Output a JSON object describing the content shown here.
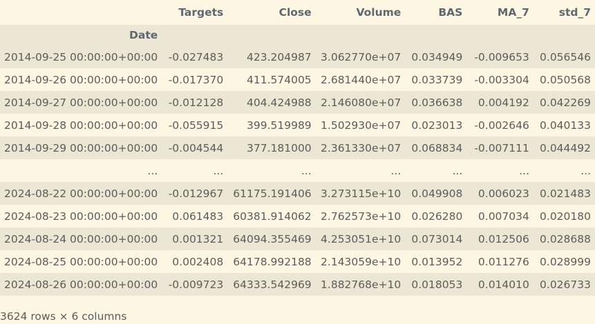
{
  "table": {
    "columns": [
      "Targets",
      "Close",
      "Volume",
      "BAS",
      "MA_7",
      "std_7"
    ],
    "index_name": "Date",
    "rows": [
      [
        "2014-09-25 00:00:00+00:00",
        "-0.027483",
        "423.204987",
        "3.062770e+07",
        "0.034949",
        "-0.009653",
        "0.056546"
      ],
      [
        "2014-09-26 00:00:00+00:00",
        "-0.017370",
        "411.574005",
        "2.681440e+07",
        "0.033739",
        "-0.003304",
        "0.050568"
      ],
      [
        "2014-09-27 00:00:00+00:00",
        "-0.012128",
        "404.424988",
        "2.146080e+07",
        "0.036638",
        "0.004192",
        "0.042269"
      ],
      [
        "2014-09-28 00:00:00+00:00",
        "-0.055915",
        "399.519989",
        "1.502930e+07",
        "0.023013",
        "-0.002646",
        "0.040133"
      ],
      [
        "2014-09-29 00:00:00+00:00",
        "-0.004544",
        "377.181000",
        "2.361330e+07",
        "0.068834",
        "-0.007111",
        "0.044492"
      ],
      [
        "...",
        "...",
        "...",
        "...",
        "...",
        "...",
        "..."
      ],
      [
        "2024-08-22 00:00:00+00:00",
        "-0.012967",
        "61175.191406",
        "3.273115e+10",
        "0.049908",
        "0.006023",
        "0.021483"
      ],
      [
        "2024-08-23 00:00:00+00:00",
        "0.061483",
        "60381.914062",
        "2.762573e+10",
        "0.026280",
        "0.007034",
        "0.020180"
      ],
      [
        "2024-08-24 00:00:00+00:00",
        "0.001321",
        "64094.355469",
        "4.253051e+10",
        "0.073014",
        "0.012506",
        "0.028688"
      ],
      [
        "2024-08-25 00:00:00+00:00",
        "0.002408",
        "64178.992188",
        "2.143059e+10",
        "0.013952",
        "0.011276",
        "0.028999"
      ],
      [
        "2024-08-26 00:00:00+00:00",
        "-0.009723",
        "64333.542969",
        "1.882768e+10",
        "0.018053",
        "0.014010",
        "0.026733"
      ]
    ]
  },
  "footer": {
    "shape_text": "3624 rows × 6 columns"
  }
}
